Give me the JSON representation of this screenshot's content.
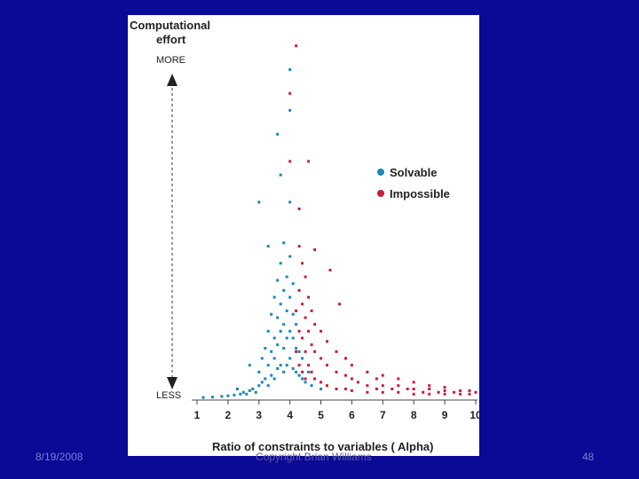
{
  "slide": {
    "date": "8/19/2008",
    "copyright": "Copyright Brian Williams",
    "page": "48"
  },
  "chart_data": {
    "type": "scatter",
    "ylabel": "Computational effort",
    "y_top_label": "MORE",
    "y_bottom_label": "LESS",
    "xlabel": "Ratio of constraints to variables ( Alpha)",
    "x_ticks": [
      "1",
      "2",
      "3",
      "4",
      "5",
      "6",
      "7",
      "8",
      "9",
      "10"
    ],
    "xlim": [
      1,
      10
    ],
    "ylim": [
      0,
      100
    ],
    "grid": false,
    "legend_position": "top-right",
    "series": [
      {
        "name": "Solvable",
        "color": "#1a87b8",
        "points": [
          [
            1.2,
            0.5
          ],
          [
            1.5,
            0.6
          ],
          [
            1.8,
            0.8
          ],
          [
            2.0,
            1
          ],
          [
            2.2,
            1.2
          ],
          [
            2.4,
            1.5
          ],
          [
            2.5,
            2
          ],
          [
            2.6,
            1.5
          ],
          [
            2.7,
            2.5
          ],
          [
            2.8,
            3
          ],
          [
            2.9,
            2
          ],
          [
            3.0,
            4
          ],
          [
            3.0,
            8
          ],
          [
            3.1,
            5
          ],
          [
            3.1,
            12
          ],
          [
            3.2,
            6
          ],
          [
            3.2,
            15
          ],
          [
            3.3,
            4
          ],
          [
            3.3,
            10
          ],
          [
            3.3,
            20
          ],
          [
            3.4,
            7
          ],
          [
            3.4,
            14
          ],
          [
            3.4,
            25
          ],
          [
            3.5,
            6
          ],
          [
            3.5,
            12
          ],
          [
            3.5,
            18
          ],
          [
            3.5,
            30
          ],
          [
            3.6,
            9
          ],
          [
            3.6,
            16
          ],
          [
            3.6,
            24
          ],
          [
            3.6,
            35
          ],
          [
            3.7,
            10
          ],
          [
            3.7,
            20
          ],
          [
            3.7,
            28
          ],
          [
            3.7,
            40
          ],
          [
            3.8,
            8
          ],
          [
            3.8,
            15
          ],
          [
            3.8,
            22
          ],
          [
            3.8,
            32
          ],
          [
            3.8,
            46
          ],
          [
            3.9,
            10
          ],
          [
            3.9,
            18
          ],
          [
            3.9,
            26
          ],
          [
            3.9,
            36
          ],
          [
            4.0,
            12
          ],
          [
            4.0,
            20
          ],
          [
            4.0,
            30
          ],
          [
            4.0,
            42
          ],
          [
            4.0,
            58
          ],
          [
            4.1,
            9
          ],
          [
            4.1,
            18
          ],
          [
            4.1,
            25
          ],
          [
            4.1,
            34
          ],
          [
            4.2,
            8
          ],
          [
            4.2,
            15
          ],
          [
            4.2,
            22
          ],
          [
            4.3,
            7
          ],
          [
            4.3,
            14
          ],
          [
            4.4,
            6
          ],
          [
            4.4,
            12
          ],
          [
            4.5,
            5
          ],
          [
            4.6,
            8
          ],
          [
            4.7,
            4
          ],
          [
            4.8,
            6
          ],
          [
            5.0,
            3
          ],
          [
            3.0,
            58
          ],
          [
            3.7,
            66
          ],
          [
            3.6,
            78
          ],
          [
            4.0,
            85
          ],
          [
            4.0,
            97
          ],
          [
            3.3,
            45
          ],
          [
            2.7,
            10
          ],
          [
            2.3,
            3
          ]
        ]
      },
      {
        "name": "Impossible",
        "color": "#cc1a3a",
        "points": [
          [
            4.2,
            14
          ],
          [
            4.2,
            26
          ],
          [
            4.3,
            10
          ],
          [
            4.3,
            20
          ],
          [
            4.3,
            32
          ],
          [
            4.3,
            45
          ],
          [
            4.4,
            8
          ],
          [
            4.4,
            18
          ],
          [
            4.4,
            28
          ],
          [
            4.4,
            40
          ],
          [
            4.5,
            6
          ],
          [
            4.5,
            14
          ],
          [
            4.5,
            24
          ],
          [
            4.5,
            36
          ],
          [
            4.6,
            10
          ],
          [
            4.6,
            20
          ],
          [
            4.6,
            30
          ],
          [
            4.7,
            8
          ],
          [
            4.7,
            16
          ],
          [
            4.7,
            26
          ],
          [
            4.8,
            6
          ],
          [
            4.8,
            14
          ],
          [
            4.8,
            22
          ],
          [
            5.0,
            5
          ],
          [
            5.0,
            12
          ],
          [
            5.0,
            20
          ],
          [
            5.2,
            4
          ],
          [
            5.2,
            10
          ],
          [
            5.2,
            17
          ],
          [
            5.5,
            3
          ],
          [
            5.5,
            8
          ],
          [
            5.5,
            14
          ],
          [
            5.8,
            3
          ],
          [
            5.8,
            7
          ],
          [
            5.8,
            12
          ],
          [
            6.0,
            2.5
          ],
          [
            6.0,
            6
          ],
          [
            6.0,
            10
          ],
          [
            6.2,
            5
          ],
          [
            6.5,
            2
          ],
          [
            6.5,
            4
          ],
          [
            6.5,
            8
          ],
          [
            6.8,
            3
          ],
          [
            6.8,
            6
          ],
          [
            7.0,
            2
          ],
          [
            7.0,
            4
          ],
          [
            7.0,
            7
          ],
          [
            7.3,
            3
          ],
          [
            7.5,
            2
          ],
          [
            7.5,
            4
          ],
          [
            7.5,
            6
          ],
          [
            7.8,
            3
          ],
          [
            8.0,
            1.5
          ],
          [
            8.0,
            3
          ],
          [
            8.0,
            5
          ],
          [
            8.3,
            2
          ],
          [
            8.5,
            1.5
          ],
          [
            8.5,
            3
          ],
          [
            8.5,
            4
          ],
          [
            8.8,
            2
          ],
          [
            9.0,
            1.5
          ],
          [
            9.0,
            2.5
          ],
          [
            9.0,
            3.5
          ],
          [
            9.3,
            2
          ],
          [
            9.5,
            1.5
          ],
          [
            9.5,
            2.5
          ],
          [
            9.8,
            1.5
          ],
          [
            9.8,
            2.5
          ],
          [
            10.0,
            2
          ],
          [
            4.0,
            90
          ],
          [
            4.2,
            104
          ],
          [
            4.0,
            70
          ],
          [
            4.6,
            70
          ],
          [
            4.3,
            56
          ],
          [
            4.8,
            44
          ],
          [
            5.3,
            38
          ],
          [
            5.6,
            28
          ]
        ]
      }
    ]
  }
}
